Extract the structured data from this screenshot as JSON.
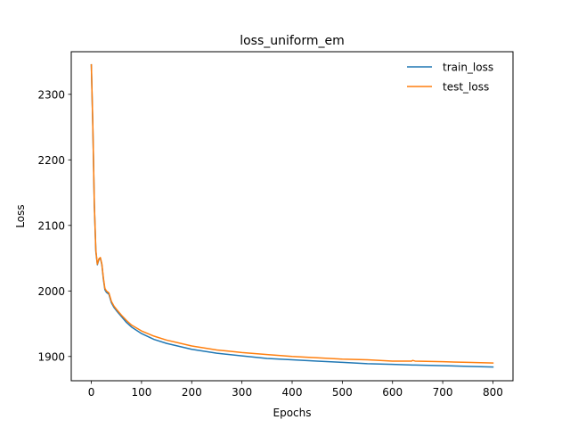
{
  "chart_data": {
    "type": "line",
    "title": "loss_uniform_em",
    "xlabel": "Epochs",
    "ylabel": "Loss",
    "xlim": [
      -40,
      840
    ],
    "ylim": [
      1863,
      2365
    ],
    "xticks": [
      0,
      100,
      200,
      300,
      400,
      500,
      600,
      700,
      800
    ],
    "yticks": [
      1900,
      2000,
      2100,
      2200,
      2300
    ],
    "grid": false,
    "legend_position": "top-right",
    "series": [
      {
        "name": "train_loss",
        "color": "#1f77b4",
        "points": [
          [
            0,
            2345
          ],
          [
            3,
            2250
          ],
          [
            6,
            2130
          ],
          [
            9,
            2060
          ],
          [
            12,
            2040
          ],
          [
            15,
            2048
          ],
          [
            18,
            2050
          ],
          [
            21,
            2040
          ],
          [
            24,
            2018
          ],
          [
            27,
            2002
          ],
          [
            30,
            1998
          ],
          [
            35,
            1995
          ],
          [
            40,
            1982
          ],
          [
            45,
            1975
          ],
          [
            50,
            1970
          ],
          [
            60,
            1961
          ],
          [
            70,
            1952
          ],
          [
            80,
            1945
          ],
          [
            100,
            1935
          ],
          [
            125,
            1926
          ],
          [
            150,
            1920
          ],
          [
            200,
            1911
          ],
          [
            250,
            1905
          ],
          [
            300,
            1901
          ],
          [
            350,
            1897
          ],
          [
            400,
            1895
          ],
          [
            450,
            1893
          ],
          [
            500,
            1891
          ],
          [
            550,
            1889
          ],
          [
            600,
            1888
          ],
          [
            640,
            1887
          ],
          [
            645,
            1887
          ],
          [
            700,
            1886
          ],
          [
            750,
            1885
          ],
          [
            800,
            1884
          ]
        ]
      },
      {
        "name": "test_loss",
        "color": "#ff7f0e",
        "points": [
          [
            0,
            2345
          ],
          [
            3,
            2252
          ],
          [
            6,
            2132
          ],
          [
            9,
            2062
          ],
          [
            12,
            2041
          ],
          [
            15,
            2049
          ],
          [
            18,
            2051
          ],
          [
            21,
            2041
          ],
          [
            24,
            2020
          ],
          [
            27,
            2004
          ],
          [
            30,
            2000
          ],
          [
            35,
            1997
          ],
          [
            40,
            1984
          ],
          [
            45,
            1977
          ],
          [
            50,
            1972
          ],
          [
            60,
            1963
          ],
          [
            70,
            1955
          ],
          [
            80,
            1948
          ],
          [
            100,
            1939
          ],
          [
            125,
            1931
          ],
          [
            150,
            1925
          ],
          [
            200,
            1916
          ],
          [
            250,
            1910
          ],
          [
            300,
            1906
          ],
          [
            350,
            1903
          ],
          [
            400,
            1900
          ],
          [
            450,
            1898
          ],
          [
            500,
            1896
          ],
          [
            550,
            1895
          ],
          [
            600,
            1893
          ],
          [
            638,
            1893
          ],
          [
            640,
            1894
          ],
          [
            645,
            1893
          ],
          [
            700,
            1892
          ],
          [
            750,
            1891
          ],
          [
            800,
            1890
          ]
        ]
      }
    ]
  }
}
